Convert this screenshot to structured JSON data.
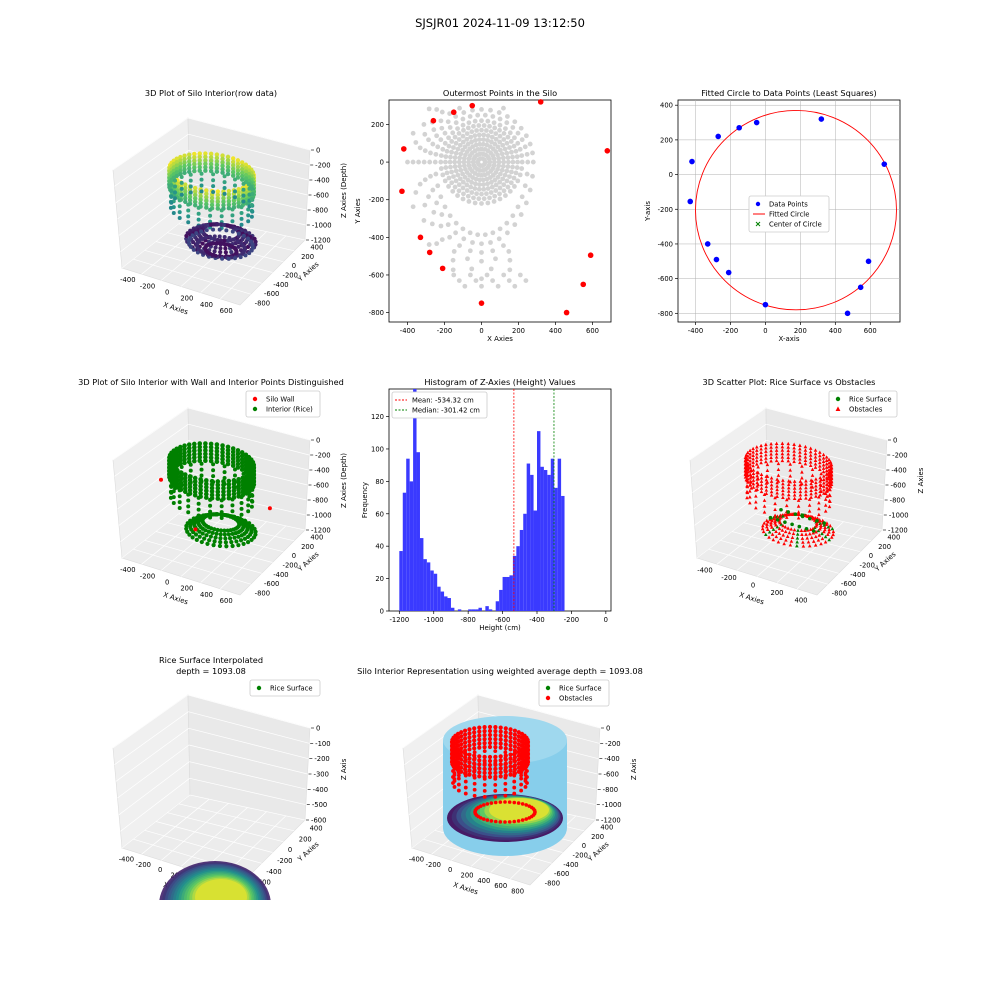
{
  "figure": {
    "title": "SJSJR01 2024-11-09 13:12:50"
  },
  "colors": {
    "red": "#ff0000",
    "green": "#008000",
    "blue": "#0000ff",
    "hist_fill": "#3a3aff",
    "gray_points": "#d3d3d3",
    "skyblue": "#87ceeb",
    "viridis": [
      "#440154",
      "#3b528b",
      "#21918c",
      "#5ec962",
      "#fde725"
    ],
    "mean_line": "#ff0000",
    "median_line": "#008000"
  },
  "chart_data": [
    {
      "id": "raw3d",
      "type": "scatter",
      "title": "3D Plot of Silo Interior(row data)",
      "xlabel": "X Axies",
      "ylabel": "Y Axies",
      "zlabel": "Z Axies (Depth)",
      "x_ticks": [
        "-400",
        "-200",
        "0",
        "200",
        "400",
        "600"
      ],
      "y_ticks": [
        "400",
        "200",
        "0",
        "-200",
        "-400",
        "-600",
        "-800"
      ],
      "z_ticks": [
        "0",
        "-200",
        "-400",
        "-600",
        "-800",
        "-1000",
        "-1200"
      ],
      "colormap": "viridis",
      "xlim": [
        -450,
        700
      ],
      "ylim": [
        -850,
        400
      ],
      "zlim": [
        -1250,
        0
      ]
    },
    {
      "id": "outer",
      "type": "scatter",
      "title": "Outermost Points in the Silo",
      "xlabel": "X Axies",
      "ylabel": "Y Axies",
      "xlim": [
        -500,
        700
      ],
      "ylim": [
        -850,
        330
      ],
      "x_ticks": [
        -400,
        -200,
        0,
        200,
        400,
        600
      ],
      "y_ticks": [
        200,
        0,
        -200,
        -400,
        -600,
        -800
      ],
      "outer_points": [
        [
          -420,
          70
        ],
        [
          -430,
          -155
        ],
        [
          -330,
          -400
        ],
        [
          -280,
          -480
        ],
        [
          -210,
          -565
        ],
        [
          -150,
          265
        ],
        [
          -50,
          300
        ],
        [
          0,
          -750
        ],
        [
          320,
          320
        ],
        [
          460,
          -800
        ],
        [
          550,
          -650
        ],
        [
          590,
          -495
        ],
        [
          680,
          60
        ],
        [
          -260,
          220
        ]
      ]
    },
    {
      "id": "fit",
      "type": "scatter",
      "title": "Fitted Circle to Data Points (Least Squares)",
      "xlabel": "X-axis",
      "ylabel": "Y-axis",
      "xlim": [
        -500,
        770
      ],
      "ylim": [
        -850,
        430
      ],
      "x_ticks": [
        -400,
        -200,
        0,
        200,
        400,
        600
      ],
      "y_ticks": [
        400,
        200,
        0,
        -200,
        -400,
        -600,
        -800
      ],
      "points": [
        [
          -420,
          75
        ],
        [
          -430,
          -155
        ],
        [
          -330,
          -400
        ],
        [
          -280,
          -490
        ],
        [
          -210,
          -565
        ],
        [
          -270,
          220
        ],
        [
          -150,
          270
        ],
        [
          -50,
          300
        ],
        [
          0,
          -750
        ],
        [
          320,
          320
        ],
        [
          470,
          -800
        ],
        [
          545,
          -650
        ],
        [
          590,
          -500
        ],
        [
          680,
          60
        ]
      ],
      "circle": {
        "cx": 175,
        "cy": -205,
        "r": 575
      },
      "legend": [
        "Data Points",
        "Fitted Circle",
        "Center of Circle"
      ]
    },
    {
      "id": "wall3d",
      "type": "scatter",
      "title": "3D Plot of Silo Interior with Wall and Interior Points Distinguished",
      "xlabel": "X Axies",
      "ylabel": "Y Axies",
      "zlabel": "Z Axies (Depth)",
      "x_ticks": [
        "-400",
        "-200",
        "0",
        "200",
        "400",
        "600"
      ],
      "y_ticks": [
        "400",
        "200",
        "0",
        "-200",
        "-400",
        "-600",
        "-800"
      ],
      "z_ticks": [
        "0",
        "-200",
        "-400",
        "-600",
        "-800",
        "-1000",
        "-1200"
      ],
      "legend": [
        "Silo Wall",
        "Interior (Rice)"
      ]
    },
    {
      "id": "hist",
      "type": "bar",
      "title": "Histogram of Z-Axies (Height) Values",
      "xlabel": "Height (cm)",
      "ylabel": "Frequency",
      "xlim": [
        -1260,
        30
      ],
      "ylim": [
        0,
        137
      ],
      "x_ticks": [
        -1200,
        -1000,
        -800,
        -600,
        -400,
        -200,
        0
      ],
      "y_ticks": [
        0,
        20,
        40,
        60,
        80,
        100,
        120
      ],
      "bin_start": -1200,
      "bin_width": 20,
      "values": [
        37,
        73,
        94,
        80,
        137,
        98,
        45,
        32,
        30,
        25,
        23,
        15,
        12,
        9,
        8,
        2,
        0,
        1,
        0,
        0,
        1,
        1,
        1,
        2,
        0,
        3,
        1,
        0,
        6,
        13,
        21,
        21,
        22,
        34,
        40,
        50,
        60,
        91,
        84,
        62,
        111,
        89,
        87,
        84,
        94,
        76,
        94,
        71,
        0
      ],
      "mean": -534.32,
      "median": -301.42,
      "legend": [
        "Mean: -534.32 cm",
        "Median: -301.42 cm"
      ]
    },
    {
      "id": "obst3d",
      "type": "scatter",
      "title": "3D Scatter Plot: Rice Surface vs Obstacles",
      "xlabel": "X Axies",
      "ylabel": "Y Axies",
      "zlabel": "Z Axies",
      "x_ticks": [
        "-400",
        "-200",
        "0",
        "200",
        "400"
      ],
      "y_ticks": [
        "400",
        "200",
        "0",
        "-200",
        "-400",
        "-600",
        "-800"
      ],
      "z_ticks": [
        "0",
        "-200",
        "-400",
        "-600",
        "-800",
        "-1000",
        "-1200"
      ],
      "legend": [
        "Rice Surface",
        "Obstacles"
      ]
    },
    {
      "id": "interp3d",
      "type": "scatter",
      "title": "Rice Surface Interpolated",
      "subtitle": "depth = 1093.08",
      "xlabel": "X Axies",
      "ylabel": "Y Axies",
      "zlabel": "Z Axis",
      "x_ticks": [
        "-400",
        "-200",
        "0",
        "200",
        "400",
        "600",
        "800"
      ],
      "y_ticks": [
        "400",
        "200",
        "0",
        "-200",
        "-400",
        "-600"
      ],
      "z_ticks": [
        "0",
        "-100",
        "-200",
        "-300",
        "-400",
        "-500",
        "-600"
      ],
      "legend": [
        "Rice Surface"
      ]
    },
    {
      "id": "weighted3d",
      "type": "scatter",
      "title": "Silo Interior Representation using weighted average depth = 1093.08",
      "xlabel": "X Axies",
      "ylabel": "Y Axies",
      "zlabel": "Z Axis",
      "x_ticks": [
        "-400",
        "-200",
        "0",
        "200",
        "400",
        "600",
        "800"
      ],
      "y_ticks": [
        "400",
        "200",
        "0",
        "-200",
        "-400",
        "-600",
        "-800"
      ],
      "z_ticks": [
        "0",
        "-200",
        "-400",
        "-600",
        "-800",
        "-1000",
        "-1200"
      ],
      "legend": [
        "Rice Surface",
        "Obstacles"
      ]
    }
  ]
}
